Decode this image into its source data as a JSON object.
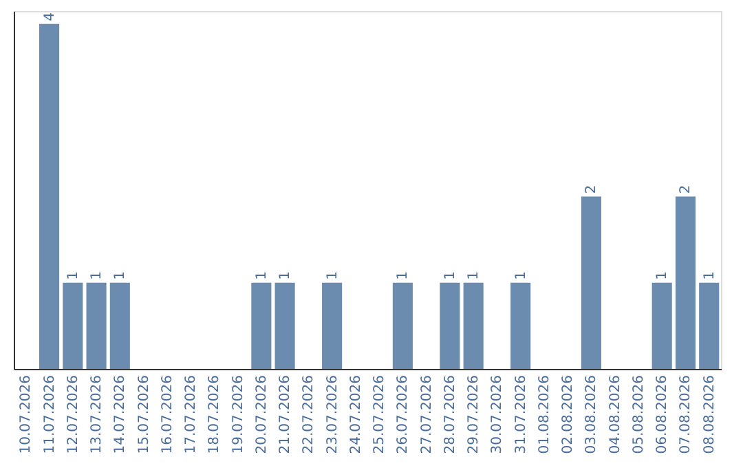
{
  "chart_data": {
    "type": "bar",
    "categories": [
      "10.07.2026",
      "11.07.2026",
      "12.07.2026",
      "13.07.2026",
      "14.07.2026",
      "15.07.2026",
      "16.07.2026",
      "17.07.2026",
      "18.07.2026",
      "19.07.2026",
      "20.07.2026",
      "21.07.2026",
      "22.07.2026",
      "23.07.2026",
      "24.07.2026",
      "25.07.2026",
      "26.07.2026",
      "27.07.2026",
      "28.07.2026",
      "29.07.2026",
      "30.07.2026",
      "31.07.2026",
      "01.08.2026",
      "02.08.2026",
      "03.08.2026",
      "04.08.2026",
      "05.08.2026",
      "06.08.2026",
      "07.08.2026",
      "08.08.2026"
    ],
    "values": [
      0,
      4,
      1,
      1,
      1,
      0,
      0,
      0,
      0,
      0,
      1,
      1,
      0,
      1,
      0,
      0,
      1,
      0,
      1,
      1,
      0,
      1,
      0,
      0,
      2,
      0,
      0,
      1,
      2,
      1
    ],
    "value_labels": [
      null,
      "4",
      "1",
      "1",
      "1",
      null,
      null,
      null,
      null,
      null,
      "1",
      "1",
      null,
      "1",
      null,
      null,
      "1",
      null,
      "1",
      "1",
      null,
      "1",
      null,
      null,
      "2",
      null,
      null,
      "1",
      "2",
      "1"
    ],
    "color": "#6b8cae",
    "ylim": [
      0,
      4.15
    ],
    "tick_labels": "x",
    "grid": false
  }
}
